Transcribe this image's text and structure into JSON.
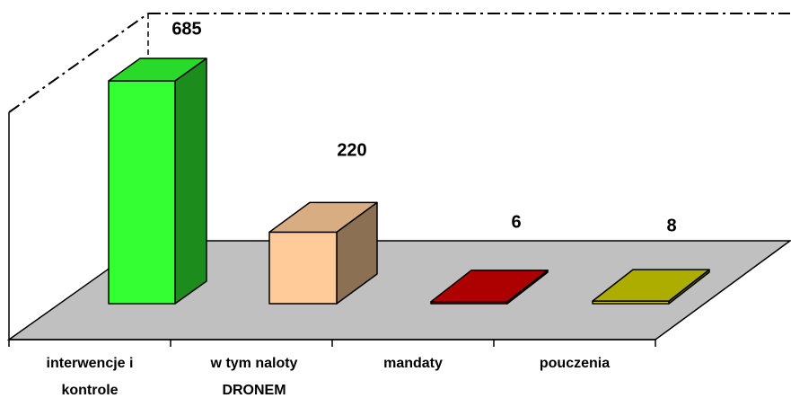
{
  "chart_data": {
    "type": "bar3d",
    "categories": [
      "interwencje i kontrole",
      "w tym naloty DRONEM",
      "mandaty",
      "pouczenia"
    ],
    "values": [
      685,
      220,
      6,
      8
    ],
    "colors": [
      "#33ff33",
      "#ffcc99",
      "#cc0000",
      "#cccc00"
    ]
  }
}
